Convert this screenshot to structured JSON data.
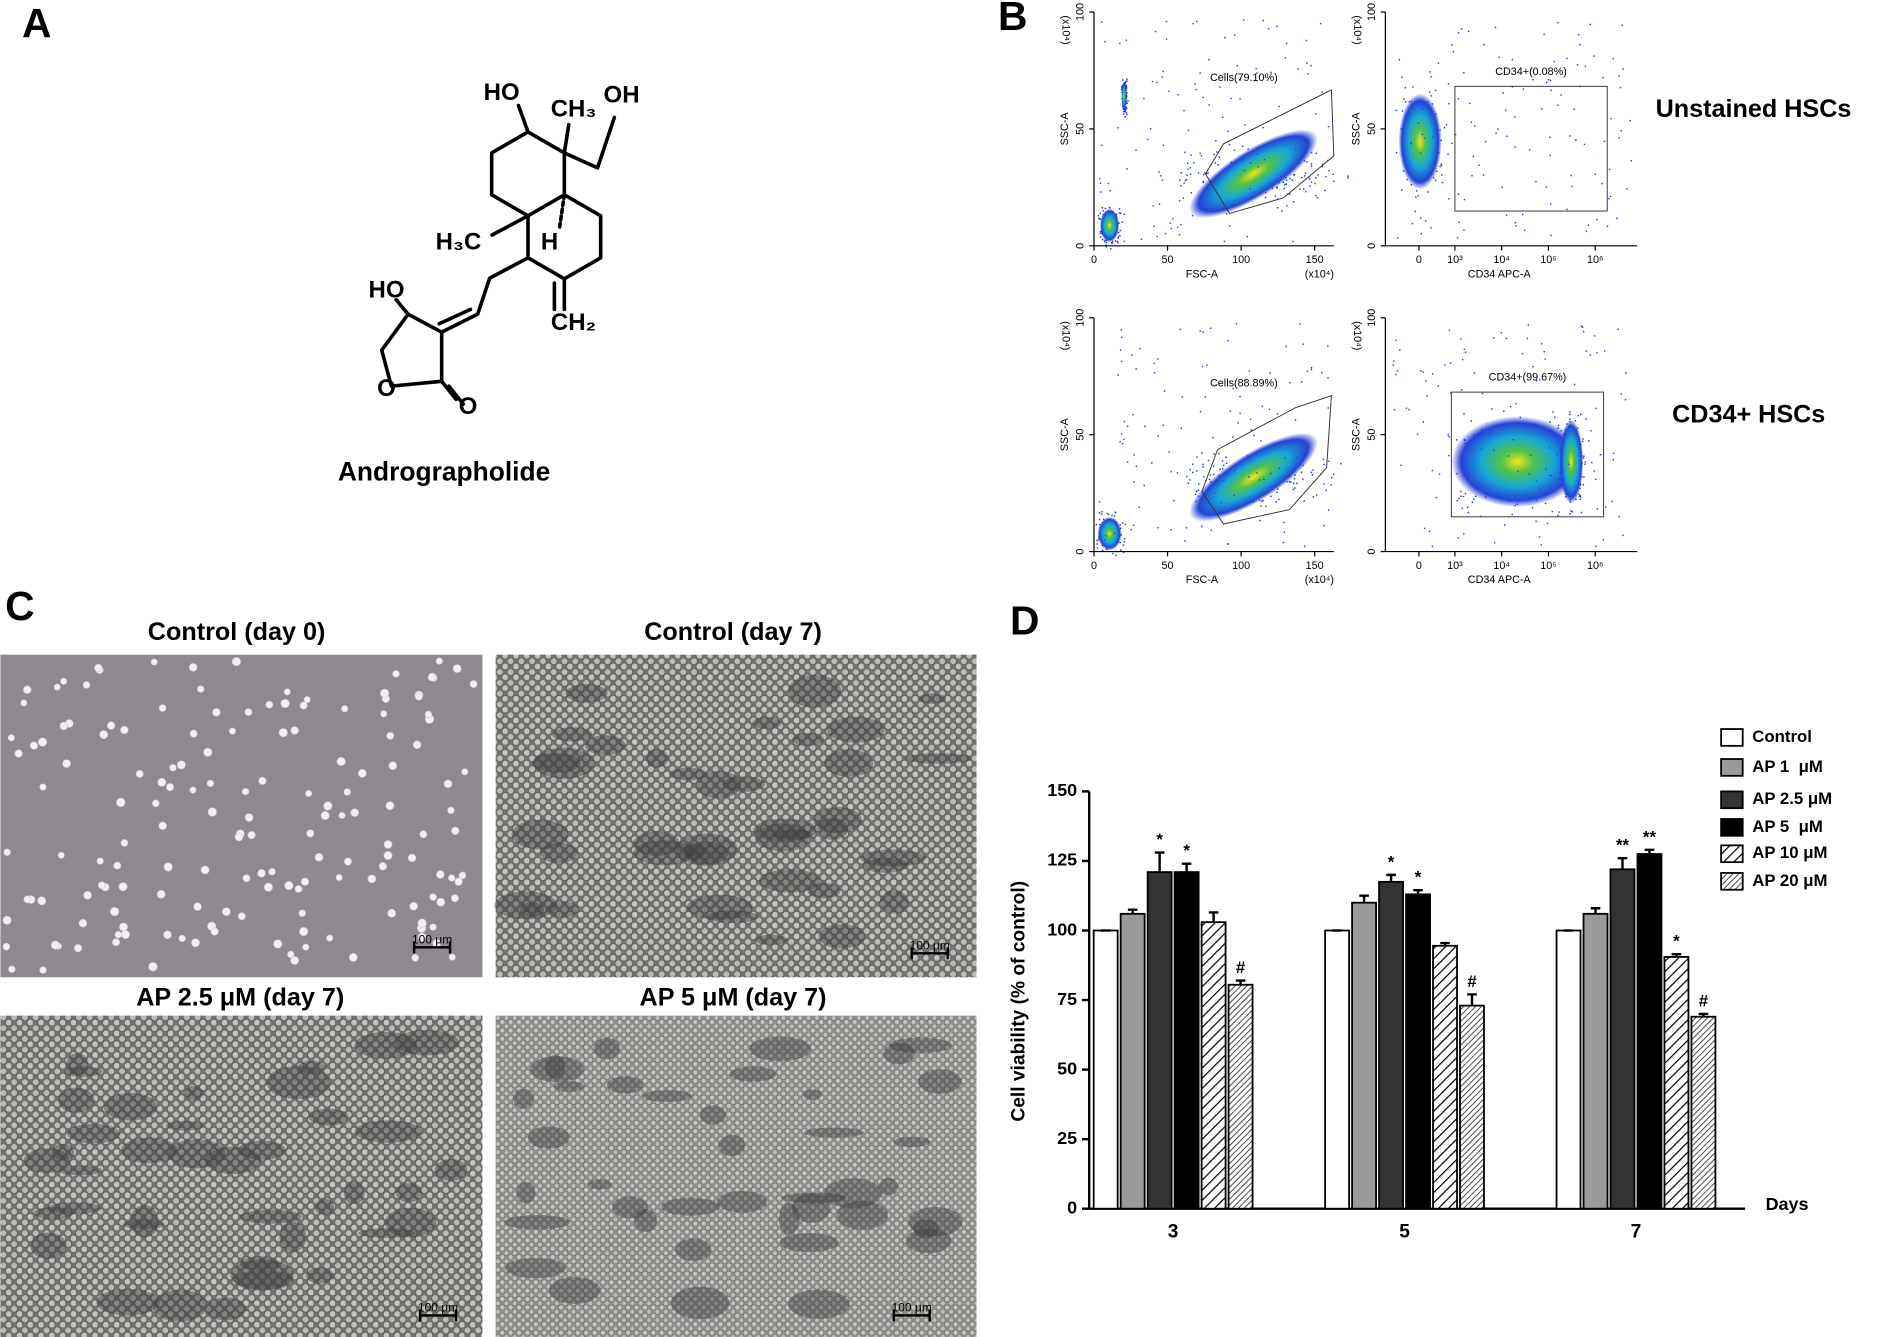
{
  "panel_labels": [
    "A",
    "B",
    "C",
    "D"
  ],
  "structure": {
    "atoms": [
      "HO",
      "CH₃",
      "OH",
      "H₃C",
      "H",
      "HO",
      "CH₂",
      "O",
      "O"
    ],
    "name": "Andrographolide"
  },
  "flow": {
    "row_labels": [
      "Unstained HSCs",
      "CD34+ HSCs"
    ],
    "plots": [
      {
        "x_label": "FSC-A",
        "y_label": "SSC-A",
        "x_multiplier": "(x10⁴)",
        "y_multiplier": "(x10⁴)",
        "gate": "Cells(79.10%)",
        "xlim": [
          0,
          163
        ],
        "xticks": [
          0,
          50,
          100,
          150
        ],
        "ylim": [
          0,
          100
        ],
        "yticks": [
          0,
          50,
          100
        ]
      },
      {
        "x_label": "CD34 APC-A",
        "y_label": "SSC-A",
        "y_multiplier": "(x10⁴)",
        "gate": "CD34+(0.08%)",
        "xticks": [
          0,
          {
            "value": 1000,
            "label": "10³"
          },
          {
            "value": 10000,
            "label": "10⁴"
          },
          {
            "value": 100000,
            "label": "10⁵"
          },
          {
            "value": 1000000,
            "label": "10⁶"
          }
        ],
        "ylim": [
          0,
          100
        ],
        "yticks": [
          0,
          50,
          100
        ]
      },
      {
        "x_label": "FSC-A",
        "y_label": "SSC-A",
        "x_multiplier": "(x10⁴)",
        "y_multiplier": "(x10⁴)",
        "gate": "Cells(88.89%)",
        "xlim": [
          0,
          163
        ],
        "xticks": [
          0,
          50,
          100,
          150
        ],
        "ylim": [
          0,
          100
        ],
        "yticks": [
          0,
          50,
          100
        ]
      },
      {
        "x_label": "CD34 APC-A",
        "y_label": "SSC-A",
        "y_multiplier": "(x10⁴)",
        "gate": "CD34+(99.67%)",
        "xticks": [
          0,
          {
            "value": 1000,
            "label": "10³"
          },
          {
            "value": 10000,
            "label": "10⁴"
          },
          {
            "value": 100000,
            "label": "10⁵"
          },
          {
            "value": 1000000,
            "label": "10⁶"
          }
        ],
        "ylim": [
          0,
          100
        ],
        "yticks": [
          0,
          50,
          100
        ]
      }
    ]
  },
  "micrographs": [
    {
      "title": "Control (day 0)",
      "scale_bar": "100 μm"
    },
    {
      "title": "Control (day 7)",
      "scale_bar": "100 μm"
    },
    {
      "title": "AP 2.5 μM (day 7)",
      "scale_bar": "100 μm"
    },
    {
      "title": "AP 5 μM (day 7)",
      "scale_bar": "100 μm"
    }
  ],
  "chart_data": {
    "type": "bar",
    "x_label": "Days",
    "y_label": "Cell viability (% of control)",
    "categories": [
      "3",
      "5",
      "7"
    ],
    "ylim": [
      0,
      150
    ],
    "yticks": [
      0,
      25,
      50,
      75,
      100,
      125,
      150
    ],
    "legend": "upper right",
    "series": [
      {
        "name": "Control",
        "color": "#ffffff",
        "values": [
          100,
          100,
          100
        ],
        "errors": [
          0,
          0,
          0
        ]
      },
      {
        "name": "AP 1  μM",
        "color": "#9a9a9a",
        "values": [
          106,
          110,
          106
        ],
        "errors": [
          1.5,
          2.5,
          2
        ]
      },
      {
        "name": "AP 2.5 μM",
        "color": "#333333",
        "values": [
          121,
          117.5,
          122
        ],
        "errors": [
          7,
          2.5,
          4
        ],
        "significance": [
          "*",
          "*",
          "**"
        ]
      },
      {
        "name": "AP 5  μM",
        "color": "#000000",
        "values": [
          121,
          113,
          127.5
        ],
        "errors": [
          3,
          1.5,
          1.5
        ],
        "significance": [
          "*",
          "*",
          "**"
        ]
      },
      {
        "name": "AP 10 μM",
        "color": "#000000",
        "pattern": "hatch",
        "values": [
          103,
          94.5,
          90.5
        ],
        "errors": [
          3.5,
          1,
          1
        ],
        "significance": [
          null,
          null,
          "*"
        ]
      },
      {
        "name": "AP 20 μM",
        "color": "#444444",
        "pattern": "hatch-dense",
        "values": [
          80.5,
          73,
          69
        ],
        "errors": [
          1.5,
          4,
          1
        ],
        "significance": [
          "#",
          "#",
          "#"
        ]
      }
    ]
  }
}
